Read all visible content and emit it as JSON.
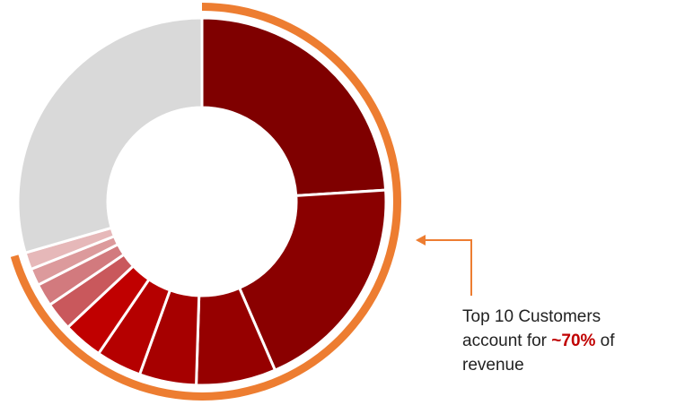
{
  "chart_data": {
    "type": "donut",
    "values": [
      24,
      19.5,
      7,
      5,
      4,
      3.5,
      2.5,
      2,
      1.5,
      1.5,
      29.5
    ],
    "colors": [
      "#7f0000",
      "#8a0000",
      "#960000",
      "#a60000",
      "#b50000",
      "#c00000",
      "#c9585c",
      "#d27a7e",
      "#dc9a9c",
      "#e6b8b9",
      "#d9d9d9"
    ],
    "highlighted": [
      true,
      true,
      true,
      true,
      true,
      true,
      true,
      true,
      true,
      true,
      false
    ],
    "highlight_color": "#ed7d31",
    "annotation": {
      "before": "Top 10 Customers account for ",
      "emphasis": "~70%",
      "after": " of revenue"
    }
  }
}
